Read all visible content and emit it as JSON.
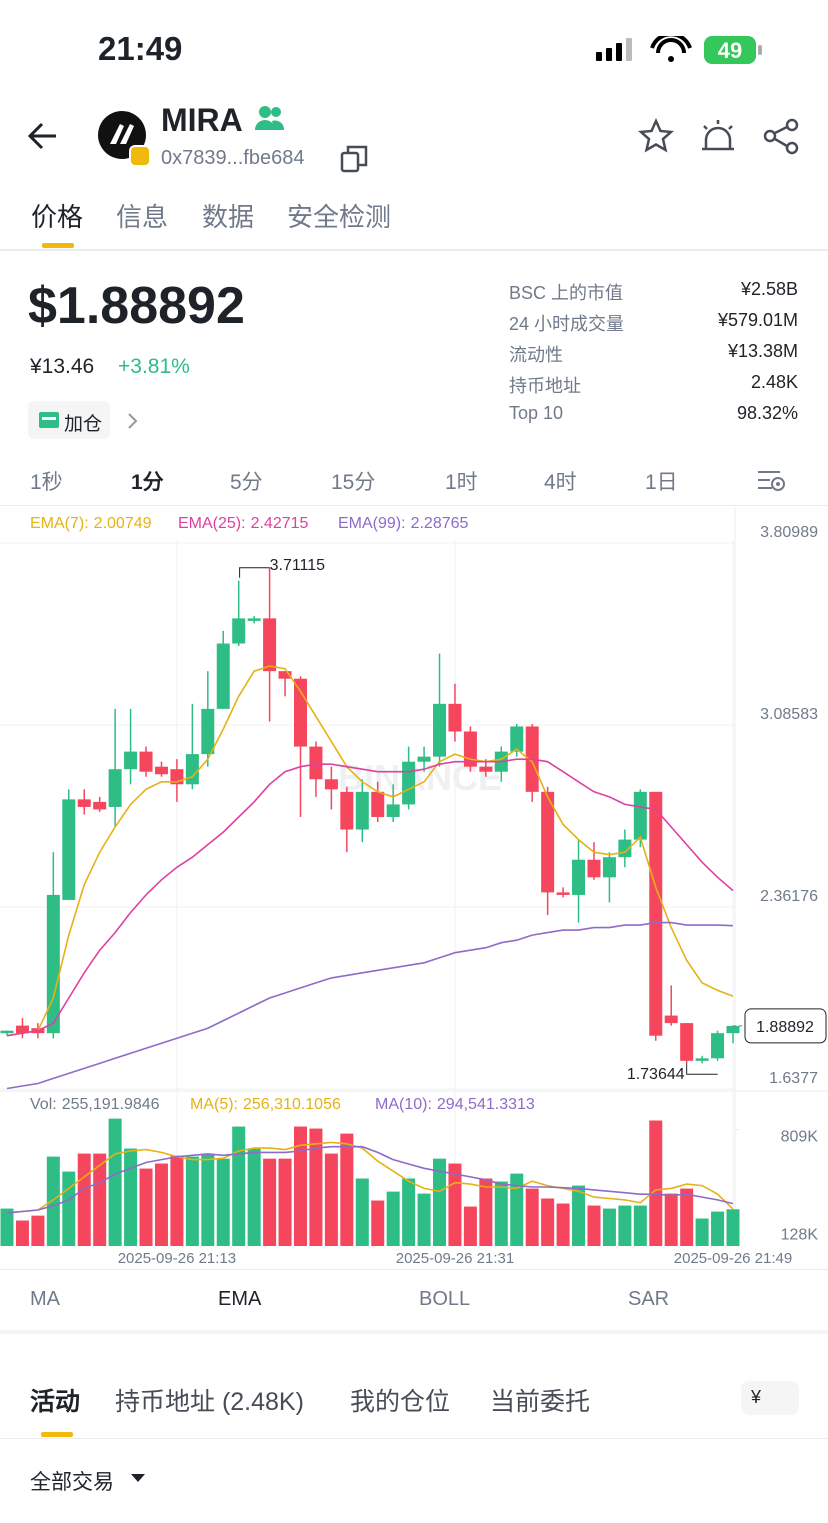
{
  "status": {
    "time": "21:49",
    "battery": "49"
  },
  "header": {
    "title": "MIRA",
    "address": "0x7839...fbe684"
  },
  "tabs": [
    "价格",
    "信息",
    "数据",
    "安全检测"
  ],
  "price": {
    "main": "$1.88892",
    "cny": "¥13.46",
    "change": "+3.81%",
    "button": "加仓"
  },
  "stats": [
    [
      "BSC 上的市值",
      "¥2.58B"
    ],
    [
      "24 小时成交量",
      "¥579.01M"
    ],
    [
      "流动性",
      "¥13.38M"
    ],
    [
      "持币地址",
      "2.48K"
    ],
    [
      "Top 10",
      "98.32%"
    ]
  ],
  "timeframes": [
    "1秒",
    "1分",
    "5分",
    "15分",
    "1时",
    "4时",
    "1日"
  ],
  "chart_data": {
    "type": "candlestick",
    "categories": [
      null,
      null,
      null,
      null,
      null,
      null,
      null,
      null,
      null,
      null,
      null,
      "2025-09-26 21:13",
      null,
      null,
      null,
      null,
      null,
      null,
      null,
      null,
      null,
      null,
      null,
      null,
      null,
      null,
      null,
      null,
      null,
      "2025-09-26 21:31",
      null,
      null,
      null,
      null,
      null,
      null,
      null,
      null,
      null,
      null,
      null,
      null,
      null,
      null,
      null,
      null,
      null,
      "2025-09-26 21:49"
    ],
    "ylim": [
      1.634,
      3.953
    ],
    "yticks": [
      3.80989,
      3.08583,
      2.36176,
      1.6377
    ],
    "up_color": "#2ebd85",
    "down_color": "#f6465d",
    "candles": [
      {
        "open": 1.86,
        "high": 1.87,
        "low": 1.85,
        "close": 1.87
      },
      {
        "open": 1.89,
        "high": 1.92,
        "low": 1.84,
        "close": 1.86
      },
      {
        "open": 1.88,
        "high": 1.9,
        "low": 1.84,
        "close": 1.86
      },
      {
        "open": 1.86,
        "high": 2.58,
        "low": 1.84,
        "close": 2.41
      },
      {
        "open": 2.39,
        "high": 2.83,
        "low": 2.39,
        "close": 2.79
      },
      {
        "open": 2.79,
        "high": 2.83,
        "low": 2.73,
        "close": 2.76
      },
      {
        "open": 2.78,
        "high": 2.8,
        "low": 2.74,
        "close": 2.75
      },
      {
        "open": 2.76,
        "high": 3.15,
        "low": 2.68,
        "close": 2.91
      },
      {
        "open": 2.91,
        "high": 3.15,
        "low": 2.85,
        "close": 2.98
      },
      {
        "open": 2.98,
        "high": 3.0,
        "low": 2.88,
        "close": 2.9
      },
      {
        "open": 2.92,
        "high": 2.94,
        "low": 2.88,
        "close": 2.89
      },
      {
        "open": 2.91,
        "high": 2.95,
        "low": 2.78,
        "close": 2.85
      },
      {
        "open": 2.85,
        "high": 3.17,
        "low": 2.83,
        "close": 2.97
      },
      {
        "open": 2.97,
        "high": 3.3,
        "low": 2.92,
        "close": 3.15
      },
      {
        "open": 3.15,
        "high": 3.46,
        "low": 3.15,
        "close": 3.41
      },
      {
        "open": 3.41,
        "high": 3.66,
        "low": 3.4,
        "close": 3.51
      },
      {
        "open": 3.5,
        "high": 3.52,
        "low": 3.49,
        "close": 3.51
      },
      {
        "open": 3.51,
        "high": 3.71115,
        "low": 3.1,
        "close": 3.3
      },
      {
        "open": 3.3,
        "high": 3.3,
        "low": 3.2,
        "close": 3.27
      },
      {
        "open": 3.27,
        "high": 3.28,
        "low": 2.72,
        "close": 3.0
      },
      {
        "open": 3.0,
        "high": 3.02,
        "low": 2.8,
        "close": 2.87
      },
      {
        "open": 2.87,
        "high": 2.92,
        "low": 2.75,
        "close": 2.83
      },
      {
        "open": 2.82,
        "high": 2.84,
        "low": 2.58,
        "close": 2.67
      },
      {
        "open": 2.67,
        "high": 2.87,
        "low": 2.62,
        "close": 2.82
      },
      {
        "open": 2.82,
        "high": 2.86,
        "low": 2.7,
        "close": 2.72
      },
      {
        "open": 2.72,
        "high": 2.85,
        "low": 2.7,
        "close": 2.77
      },
      {
        "open": 2.77,
        "high": 3.0,
        "low": 2.75,
        "close": 2.94
      },
      {
        "open": 2.94,
        "high": 3.0,
        "low": 2.9,
        "close": 2.96
      },
      {
        "open": 2.96,
        "high": 3.37,
        "low": 2.92,
        "close": 3.17
      },
      {
        "open": 3.17,
        "high": 3.25,
        "low": 3.02,
        "close": 3.06
      },
      {
        "open": 3.06,
        "high": 3.08,
        "low": 2.9,
        "close": 2.92
      },
      {
        "open": 2.92,
        "high": 2.95,
        "low": 2.88,
        "close": 2.9
      },
      {
        "open": 2.9,
        "high": 3.0,
        "low": 2.86,
        "close": 2.98
      },
      {
        "open": 2.98,
        "high": 3.09,
        "low": 2.96,
        "close": 3.08
      },
      {
        "open": 3.08,
        "high": 3.09,
        "low": 2.78,
        "close": 2.82
      },
      {
        "open": 2.82,
        "high": 2.84,
        "low": 2.33,
        "close": 2.42
      },
      {
        "open": 2.42,
        "high": 2.44,
        "low": 2.4,
        "close": 2.41
      },
      {
        "open": 2.41,
        "high": 2.63,
        "low": 2.3,
        "close": 2.55
      },
      {
        "open": 2.55,
        "high": 2.62,
        "low": 2.47,
        "close": 2.48
      },
      {
        "open": 2.48,
        "high": 2.58,
        "low": 2.38,
        "close": 2.56
      },
      {
        "open": 2.56,
        "high": 2.67,
        "low": 2.52,
        "close": 2.63
      },
      {
        "open": 2.63,
        "high": 2.83,
        "low": 2.6,
        "close": 2.82
      },
      {
        "open": 2.82,
        "high": 2.82,
        "low": 1.83,
        "close": 1.85
      },
      {
        "open": 1.93,
        "high": 2.05,
        "low": 1.89,
        "close": 1.9
      },
      {
        "open": 1.9,
        "high": 1.9,
        "low": 1.73644,
        "close": 1.75
      },
      {
        "open": 1.75,
        "high": 1.77,
        "low": 1.74,
        "close": 1.76
      },
      {
        "open": 1.76,
        "high": 1.87,
        "low": 1.75,
        "close": 1.86
      },
      {
        "open": 1.86,
        "high": 1.89,
        "low": 1.82,
        "close": 1.88892
      }
    ],
    "series": [
      {
        "name": "EMA(7):",
        "color": "#e5b214",
        "values": [
          1.85,
          1.86,
          1.87,
          2.0,
          2.25,
          2.45,
          2.58,
          2.68,
          2.77,
          2.83,
          2.86,
          2.86,
          2.88,
          2.95,
          3.07,
          3.2,
          3.3,
          3.32,
          3.31,
          3.22,
          3.12,
          3.02,
          2.92,
          2.86,
          2.82,
          2.8,
          2.83,
          2.86,
          2.94,
          2.97,
          2.95,
          2.94,
          2.95,
          2.99,
          2.94,
          2.8,
          2.69,
          2.63,
          2.58,
          2.57,
          2.58,
          2.64,
          2.44,
          2.28,
          2.15,
          2.06,
          2.03,
          2.00749
        ]
      },
      {
        "name": "EMA(25):",
        "color": "#e040a0",
        "values": [
          1.85,
          1.86,
          1.87,
          1.9,
          2.0,
          2.1,
          2.19,
          2.26,
          2.34,
          2.41,
          2.47,
          2.52,
          2.56,
          2.61,
          2.66,
          2.72,
          2.78,
          2.85,
          2.9,
          2.92,
          2.93,
          2.93,
          2.92,
          2.91,
          2.9,
          2.9,
          2.9,
          2.91,
          2.93,
          2.94,
          2.94,
          2.94,
          2.94,
          2.95,
          2.95,
          2.94,
          2.9,
          2.86,
          2.82,
          2.8,
          2.77,
          2.76,
          2.75,
          2.68,
          2.61,
          2.54,
          2.48,
          2.42715
        ]
      },
      {
        "name": "EMA(99):",
        "color": "#8e6bc8",
        "values": [
          1.64,
          1.65,
          1.66,
          1.68,
          1.7,
          1.72,
          1.74,
          1.76,
          1.78,
          1.8,
          1.82,
          1.84,
          1.86,
          1.88,
          1.91,
          1.94,
          1.97,
          2.0,
          2.02,
          2.04,
          2.06,
          2.08,
          2.09,
          2.1,
          2.11,
          2.12,
          2.13,
          2.14,
          2.16,
          2.18,
          2.19,
          2.2,
          2.22,
          2.23,
          2.25,
          2.26,
          2.27,
          2.27,
          2.28,
          2.28,
          2.29,
          2.29,
          2.3,
          2.3,
          2.29,
          2.29,
          2.29,
          2.28765
        ]
      }
    ],
    "volume": {
      "label": "Vol:",
      "ylim": [
        0,
        1070000
      ],
      "yticks": [
        {
          "value": 809000,
          "label": "809K"
        },
        {
          "value": 128000,
          "label": "128K"
        }
      ],
      "values": [
        260000,
        177000,
        211000,
        621000,
        517000,
        642000,
        642000,
        885000,
        677000,
        538000,
        573000,
        628000,
        621000,
        642000,
        607000,
        830000,
        677000,
        607000,
        607000,
        830000,
        816000,
        642000,
        781000,
        469000,
        316000,
        378000,
        469000,
        364000,
        607000,
        573000,
        274000,
        469000,
        448000,
        503000,
        399000,
        330000,
        295000,
        420000,
        281000,
        260000,
        281000,
        281000,
        872000,
        364000,
        399000,
        191000,
        239000,
        255191.9846
      ],
      "value_labels": [
        null,
        null,
        null,
        null,
        null,
        null,
        null,
        null,
        null,
        null,
        null,
        null,
        null,
        null,
        null,
        null,
        null,
        null,
        null,
        null,
        null,
        null,
        null,
        null,
        null,
        null,
        null,
        null,
        null,
        null,
        null,
        null,
        null,
        null,
        null,
        null,
        null,
        null,
        null,
        null,
        null,
        null,
        null,
        null,
        null,
        null,
        null,
        "255,191.9846"
      ],
      "series": [
        {
          "name": "MA(5):",
          "color": "#e5b214",
          "values": [
            230000,
            240000,
            250000,
            320000,
            400000,
            480000,
            560000,
            640000,
            660000,
            670000,
            650000,
            620000,
            600000,
            600000,
            610000,
            660000,
            680000,
            680000,
            670000,
            700000,
            710000,
            720000,
            710000,
            680000,
            590000,
            520000,
            450000,
            400000,
            380000,
            440000,
            430000,
            410000,
            410000,
            400000,
            450000,
            420000,
            400000,
            380000,
            340000,
            330000,
            320000,
            300000,
            390000,
            400000,
            430000,
            420000,
            360000,
            256310.1056
          ],
          "value_labels": [
            null,
            null,
            null,
            null,
            null,
            null,
            null,
            null,
            null,
            null,
            null,
            null,
            null,
            null,
            null,
            null,
            null,
            null,
            null,
            null,
            null,
            null,
            null,
            null,
            null,
            null,
            null,
            null,
            null,
            null,
            null,
            null,
            null,
            null,
            null,
            null,
            null,
            null,
            null,
            null,
            null,
            null,
            null,
            null,
            null,
            null,
            null,
            "256,310.1056"
          ]
        },
        {
          "name": "MA(10):",
          "color": "#8e6bc8",
          "values": [
            230000,
            240000,
            250000,
            280000,
            320000,
            400000,
            440000,
            500000,
            540000,
            580000,
            600000,
            620000,
            630000,
            640000,
            630000,
            640000,
            650000,
            650000,
            650000,
            660000,
            680000,
            690000,
            690000,
            690000,
            650000,
            600000,
            570000,
            540000,
            520000,
            500000,
            480000,
            460000,
            430000,
            420000,
            410000,
            410000,
            405000,
            400000,
            390000,
            380000,
            370000,
            360000,
            360000,
            350000,
            360000,
            340000,
            320000,
            294541.3313
          ],
          "value_labels": [
            null,
            null,
            null,
            null,
            null,
            null,
            null,
            null,
            null,
            null,
            null,
            null,
            null,
            null,
            null,
            null,
            null,
            null,
            null,
            null,
            null,
            null,
            null,
            null,
            null,
            null,
            null,
            null,
            null,
            null,
            null,
            null,
            null,
            null,
            null,
            null,
            null,
            null,
            null,
            null,
            null,
            null,
            null,
            null,
            null,
            null,
            null,
            "294,541.3313"
          ]
        }
      ]
    }
  },
  "indicators": [
    "MA",
    "EMA",
    "BOLL",
    "SAR"
  ],
  "bottom_tabs": [
    "活动",
    "持币地址 (2.48K)",
    "我的仓位",
    "当前委托"
  ],
  "currency": "¥",
  "filter": "全部交易"
}
